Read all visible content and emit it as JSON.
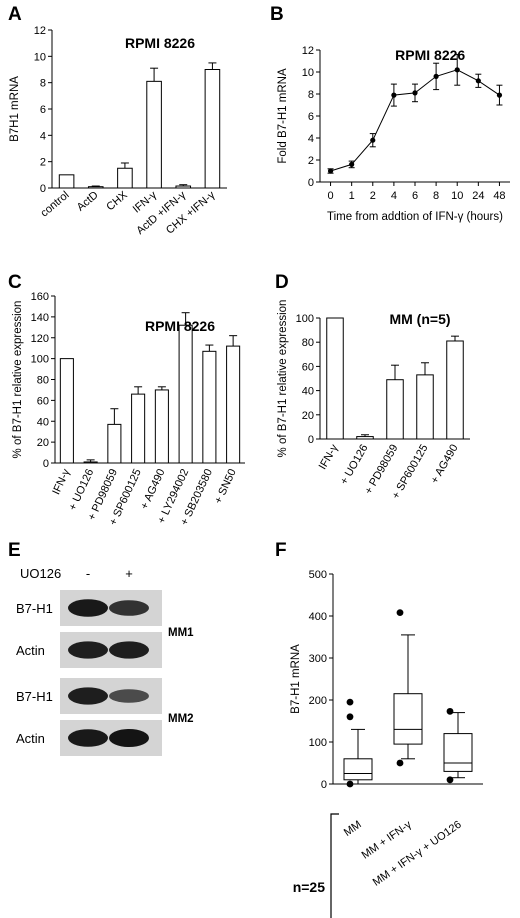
{
  "panels": {
    "A": "A",
    "B": "B",
    "C": "C",
    "D": "D",
    "E": "E",
    "F": "F"
  },
  "chart_data": [
    {
      "id": "A",
      "type": "bar",
      "title": "RPMI 8226",
      "ylabel": "B7H1 mRNA",
      "xlabel": "",
      "ylim": [
        0,
        12
      ],
      "yticks": [
        0,
        2,
        4,
        6,
        8,
        10,
        12
      ],
      "categories": [
        "control",
        "ActD",
        "CHX",
        "IFN-γ",
        "ActD +IFN-γ",
        "CHX +IFN-γ"
      ],
      "values": [
        1.0,
        0.1,
        1.5,
        8.1,
        0.15,
        9.0
      ],
      "errors": [
        0,
        0.05,
        0.4,
        1.0,
        0.1,
        0.5
      ]
    },
    {
      "id": "B",
      "type": "line",
      "title": "RPMI 8226",
      "ylabel": "Fold B7-H1 mRNA",
      "xlabel": "Time from addtion of IFN-γ (hours)",
      "ylim": [
        0,
        12
      ],
      "yticks": [
        0,
        2,
        4,
        6,
        8,
        10,
        12
      ],
      "x": [
        "0",
        "1",
        "2",
        "4",
        "6",
        "8",
        "10",
        "24",
        "48"
      ],
      "values": [
        1.0,
        1.6,
        3.8,
        7.9,
        8.1,
        9.6,
        10.2,
        9.2,
        7.9
      ],
      "errors": [
        0.2,
        0.3,
        0.6,
        1.0,
        0.8,
        1.2,
        1.4,
        0.6,
        0.9
      ]
    },
    {
      "id": "C",
      "type": "bar",
      "title": "RPMI 8226",
      "ylabel": "% of B7-H1 relative expression",
      "xlabel": "",
      "ylim": [
        0,
        160
      ],
      "yticks": [
        0,
        20,
        40,
        60,
        80,
        100,
        120,
        140,
        160
      ],
      "categories": [
        "IFN-γ",
        "+ UO126",
        "+ PD98059",
        "+ SP600125",
        "+ AG490",
        "+ LY294002",
        "+ SB203580",
        "+ SN50"
      ],
      "values": [
        100,
        1,
        37,
        66,
        70,
        132,
        107,
        112
      ],
      "errors": [
        0,
        2,
        15,
        7,
        3,
        12,
        6,
        10
      ]
    },
    {
      "id": "D",
      "type": "bar",
      "title": "MM (n=5)",
      "ylabel": "% of B7-H1 relative expression",
      "xlabel": "",
      "ylim": [
        0,
        100
      ],
      "yticks": [
        0,
        20,
        40,
        60,
        80,
        100
      ],
      "categories": [
        "IFN-γ",
        "+ UO126",
        "+ PD98059",
        "+ SP600125",
        "+ AG490"
      ],
      "values": [
        100,
        2,
        49,
        53,
        81
      ],
      "errors": [
        0,
        1.5,
        12,
        10,
        4
      ]
    },
    {
      "id": "F",
      "type": "box",
      "title": "",
      "ylabel": "B7-H1 mRNA",
      "xlabel": "",
      "ylim": [
        0,
        500
      ],
      "yticks": [
        0,
        100,
        200,
        300,
        400,
        500
      ],
      "n_label": "n=25",
      "categories": [
        "MM",
        "MM + IFN-γ",
        "MM + IFN-γ + UO126"
      ],
      "boxes": [
        {
          "min": 0,
          "q1": 10,
          "median": 25,
          "q3": 60,
          "max": 130,
          "outliers": [
            0,
            160,
            195
          ]
        },
        {
          "min": 60,
          "q1": 95,
          "median": 130,
          "q3": 215,
          "max": 355,
          "outliers": [
            50,
            408
          ]
        },
        {
          "min": 15,
          "q1": 30,
          "median": 50,
          "q3": 120,
          "max": 170,
          "outliers": [
            10,
            173
          ]
        }
      ]
    }
  ],
  "blot": {
    "treatment_label": "UO126",
    "lane_labels": [
      "-",
      "+"
    ],
    "rows": [
      "B7-H1",
      "Actin",
      "B7-H1",
      "Actin"
    ],
    "groups": [
      "MM1",
      "MM2"
    ],
    "intensities": [
      [
        0.95,
        0.7
      ],
      [
        0.9,
        0.9
      ],
      [
        0.9,
        0.45
      ],
      [
        0.95,
        1.0
      ]
    ]
  }
}
